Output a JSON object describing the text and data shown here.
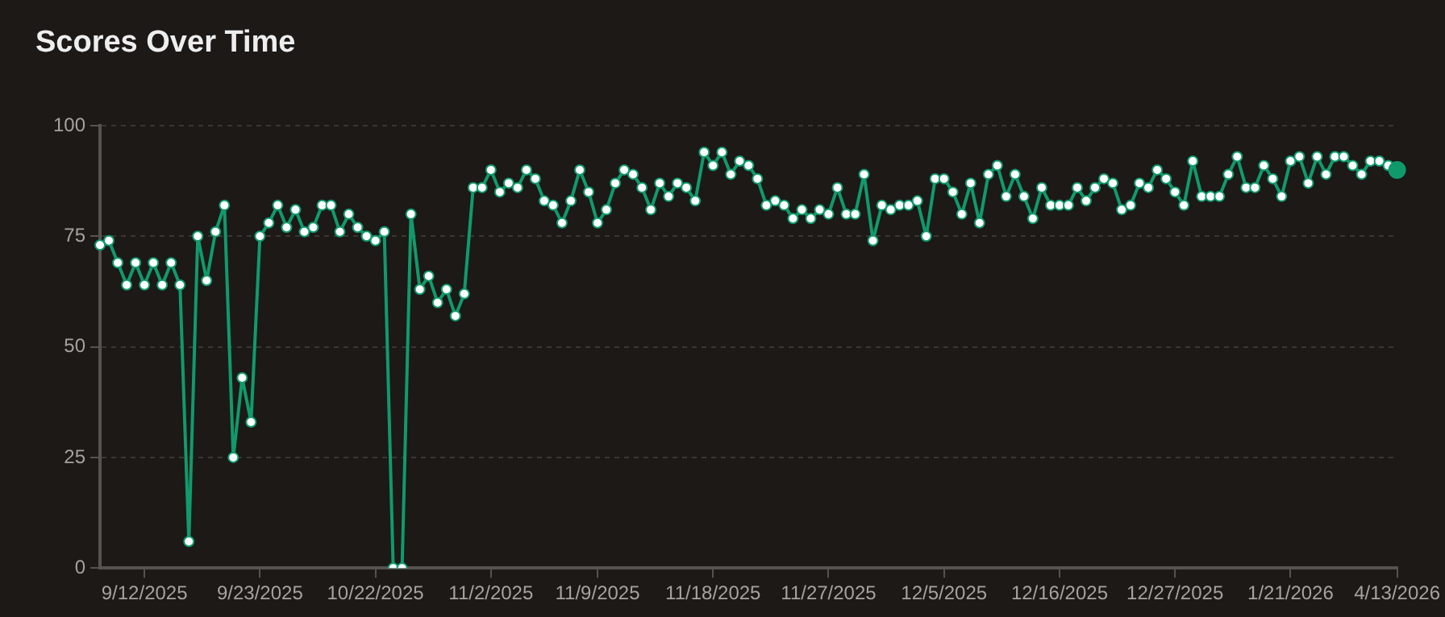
{
  "chart_data": {
    "type": "line",
    "title": "Scores Over Time",
    "categories": [
      null,
      null,
      null,
      null,
      null,
      "9/12/2025",
      null,
      null,
      null,
      null,
      null,
      null,
      null,
      null,
      null,
      null,
      null,
      null,
      "9/23/2025",
      null,
      null,
      null,
      null,
      null,
      null,
      null,
      null,
      null,
      null,
      null,
      null,
      "10/22/2025",
      null,
      null,
      null,
      null,
      null,
      null,
      null,
      null,
      null,
      null,
      null,
      null,
      "11/2/2025",
      null,
      null,
      null,
      null,
      null,
      null,
      null,
      null,
      null,
      null,
      null,
      "11/9/2025",
      null,
      null,
      null,
      null,
      null,
      null,
      null,
      null,
      null,
      null,
      null,
      null,
      "11/18/2025",
      null,
      null,
      null,
      null,
      null,
      null,
      null,
      null,
      null,
      null,
      null,
      null,
      "11/27/2025",
      null,
      null,
      null,
      null,
      null,
      null,
      null,
      null,
      null,
      null,
      null,
      null,
      "12/5/2025",
      null,
      null,
      null,
      null,
      null,
      null,
      null,
      null,
      null,
      null,
      null,
      null,
      "12/16/2025",
      null,
      null,
      null,
      null,
      null,
      null,
      null,
      null,
      null,
      null,
      null,
      null,
      "12/27/2025",
      null,
      null,
      null,
      null,
      null,
      null,
      null,
      null,
      null,
      null,
      null,
      null,
      "1/21/2026",
      null,
      null,
      null,
      null,
      null,
      null,
      null,
      null,
      null,
      null,
      null,
      "4/13/2026"
    ],
    "series": [
      {
        "color": "#109a6c",
        "values": [
          73,
          74,
          69,
          64,
          69,
          64,
          69,
          64,
          69,
          64,
          6,
          75,
          65,
          76,
          82,
          25,
          43,
          33,
          75,
          78,
          82,
          77,
          81,
          76,
          77,
          82,
          82,
          76,
          80,
          77,
          75,
          74,
          76,
          0,
          0,
          80,
          63,
          66,
          60,
          63,
          57,
          62,
          86,
          86,
          90,
          85,
          87,
          86,
          90,
          88,
          83,
          82,
          78,
          83,
          90,
          85,
          78,
          81,
          87,
          90,
          89,
          86,
          81,
          87,
          84,
          87,
          86,
          83,
          94,
          91,
          94,
          89,
          92,
          91,
          88,
          82,
          83,
          82,
          79,
          81,
          79,
          81,
          80,
          86,
          80,
          80,
          89,
          74,
          82,
          81,
          82,
          82,
          83,
          75,
          88,
          88,
          85,
          80,
          87,
          78,
          89,
          91,
          84,
          89,
          84,
          79,
          86,
          82,
          82,
          82,
          86,
          83,
          86,
          88,
          87,
          81,
          82,
          87,
          86,
          90,
          88,
          85,
          82,
          92,
          84,
          84,
          84,
          89,
          93,
          86,
          86,
          91,
          88,
          84,
          92,
          93,
          87,
          93,
          89,
          93,
          93,
          91,
          89,
          92,
          92,
          91,
          90
        ]
      }
    ],
    "ylim": [
      0,
      100
    ],
    "yticks": [
      0,
      25,
      50,
      75,
      100
    ],
    "grid": "y",
    "legend": false,
    "marker": "circle",
    "line_style": "solid"
  }
}
